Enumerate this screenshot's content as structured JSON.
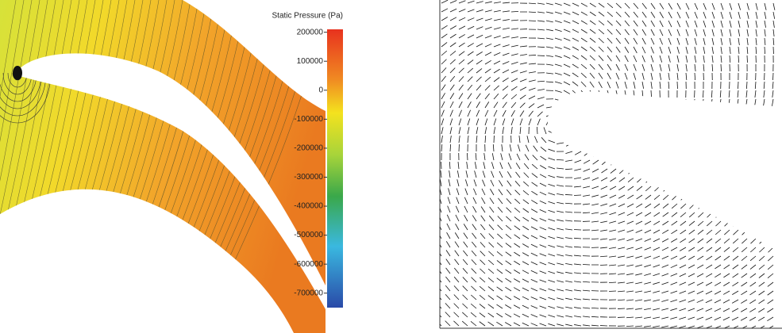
{
  "colorbar": {
    "title": "Static Pressure (Pa)",
    "range": [
      -750000,
      210000
    ],
    "ticks": [
      200000,
      100000,
      0,
      -100000,
      -200000,
      -300000,
      -400000,
      -500000,
      -600000,
      -700000
    ]
  }
}
